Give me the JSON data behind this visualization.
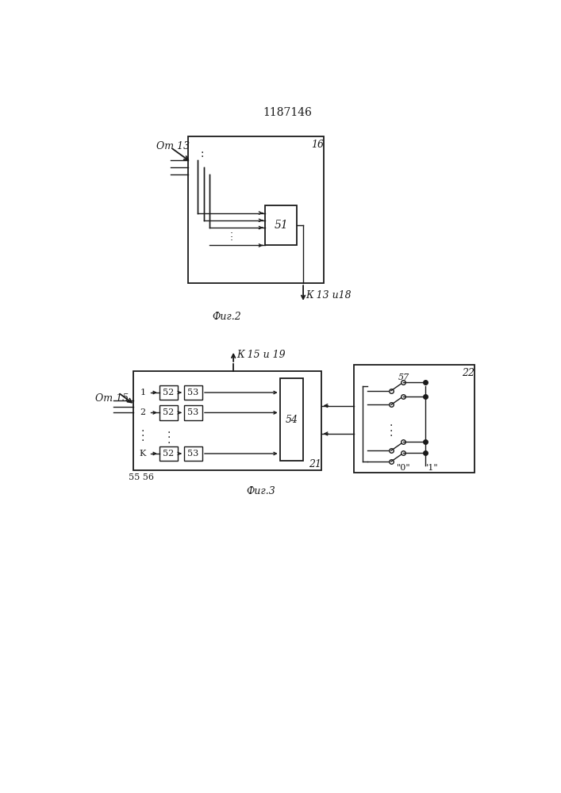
{
  "title": "1187146",
  "fig2_box_label": "16",
  "fig2_caption": "Фиг.2",
  "fig2_input_label": "От 13",
  "fig2_output_label": "К 13 и18",
  "fig2_block_label": "51",
  "fig3_box21_label": "21",
  "fig3_box22_label": "22",
  "fig3_caption": "Фиг.3",
  "fig3_input_label": "От 15",
  "fig3_output_label": "К 15 и 19",
  "fig3_block54_label": "54",
  "fig3_block57_label": "57",
  "fig3_labels_5556": "55 56",
  "fig3_block52_label": "52",
  "fig3_block53_label": "53",
  "fig3_zero_label": "\"0\"",
  "fig3_one_label": "\"1\"",
  "bg_color": "#ffffff",
  "line_color": "#1a1a1a"
}
